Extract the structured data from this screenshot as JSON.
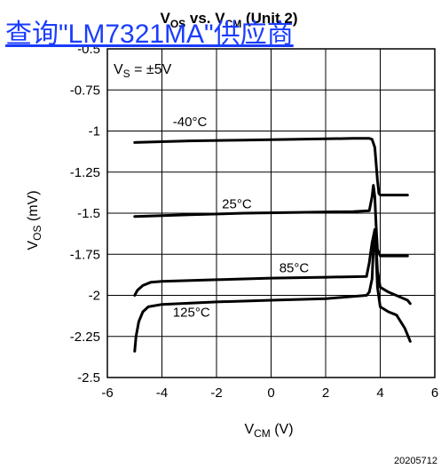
{
  "link_text": "查询\"LM7321MA\"供应商",
  "chart_data": {
    "type": "line",
    "title": {
      "main": "V",
      "main_sub": "OS",
      "mid": " vs. V",
      "mid_sub": "CM",
      "tail": " (Unit 2)"
    },
    "annotation": {
      "base": "V",
      "sub": "S",
      "tail": " = ±5V"
    },
    "xlabel": {
      "base": "V",
      "sub": "CM",
      "tail": " (V)"
    },
    "ylabel": {
      "base": "V",
      "sub": "OS",
      "tail": " (mV)"
    },
    "xlim": [
      -6,
      6
    ],
    "ylim": [
      -2.5,
      -0.5
    ],
    "xticks": [
      -6,
      -4,
      -2,
      0,
      2,
      4,
      6
    ],
    "yticks": [
      -2.5,
      -2.25,
      -2,
      -1.75,
      -1.5,
      -1.25,
      -1,
      -0.75,
      -0.5
    ],
    "xtick_labels": [
      "-6",
      "-4",
      "-2",
      "0",
      "2",
      "4",
      "6"
    ],
    "ytick_labels": [
      "-2.5",
      "-2.25",
      "-2",
      "-1.75",
      "-1.5",
      "-1.25",
      "-1",
      "-0.75",
      "-0.5"
    ],
    "grid": true,
    "line_color": "#000000",
    "series": [
      {
        "name": "-40°C",
        "label_at": [
          -3.6,
          -0.97
        ],
        "points": [
          [
            -5,
            -1.07
          ],
          [
            -3,
            -1.06
          ],
          [
            -1,
            -1.055
          ],
          [
            1,
            -1.05
          ],
          [
            3,
            -1.045
          ],
          [
            3.6,
            -1.045
          ],
          [
            3.7,
            -1.05
          ],
          [
            3.8,
            -1.1
          ],
          [
            3.85,
            -1.2
          ],
          [
            3.9,
            -1.3
          ],
          [
            3.95,
            -1.38
          ],
          [
            4.0,
            -1.39
          ],
          [
            5.0,
            -1.39
          ]
        ]
      },
      {
        "name": "25°C",
        "label_at": [
          -1.8,
          -1.47
        ],
        "points": [
          [
            -5,
            -1.52
          ],
          [
            -3,
            -1.51
          ],
          [
            -1,
            -1.5
          ],
          [
            1,
            -1.495
          ],
          [
            3,
            -1.49
          ],
          [
            3.6,
            -1.485
          ],
          [
            3.7,
            -1.4
          ],
          [
            3.75,
            -1.33
          ],
          [
            3.8,
            -1.4
          ],
          [
            3.85,
            -1.58
          ],
          [
            3.9,
            -1.72
          ],
          [
            4.0,
            -1.76
          ],
          [
            5.0,
            -1.76
          ]
        ]
      },
      {
        "name": "85°C",
        "label_at": [
          0.3,
          -1.86
        ],
        "points": [
          [
            -5,
            -2
          ],
          [
            -4.9,
            -1.97
          ],
          [
            -4.7,
            -1.94
          ],
          [
            -4.4,
            -1.92
          ],
          [
            -4,
            -1.915
          ],
          [
            -2,
            -1.905
          ],
          [
            0,
            -1.895
          ],
          [
            2,
            -1.89
          ],
          [
            3.5,
            -1.885
          ],
          [
            3.6,
            -1.8
          ],
          [
            3.7,
            -1.68
          ],
          [
            3.8,
            -1.6
          ],
          [
            3.85,
            -1.7
          ],
          [
            3.9,
            -1.85
          ],
          [
            4.0,
            -1.95
          ],
          [
            4.3,
            -1.98
          ],
          [
            5.0,
            -2.03
          ],
          [
            5.1,
            -2.05
          ]
        ]
      },
      {
        "name": "125°C",
        "label_at": [
          -3.6,
          -2.13
        ],
        "points": [
          [
            -5,
            -2.34
          ],
          [
            -4.95,
            -2.25
          ],
          [
            -4.85,
            -2.16
          ],
          [
            -4.7,
            -2.1
          ],
          [
            -4.5,
            -2.07
          ],
          [
            -4,
            -2.055
          ],
          [
            -2,
            -2.04
          ],
          [
            0,
            -2.03
          ],
          [
            2,
            -2.02
          ],
          [
            3.5,
            -2.0
          ],
          [
            3.6,
            -1.98
          ],
          [
            3.7,
            -1.9
          ],
          [
            3.75,
            -1.72
          ],
          [
            3.8,
            -1.6
          ],
          [
            3.85,
            -1.75
          ],
          [
            3.9,
            -1.95
          ],
          [
            4.0,
            -2.07
          ],
          [
            4.3,
            -2.1
          ],
          [
            4.6,
            -2.12
          ],
          [
            4.9,
            -2.2
          ],
          [
            5.1,
            -2.28
          ]
        ]
      }
    ]
  },
  "footer_code": "20205712"
}
